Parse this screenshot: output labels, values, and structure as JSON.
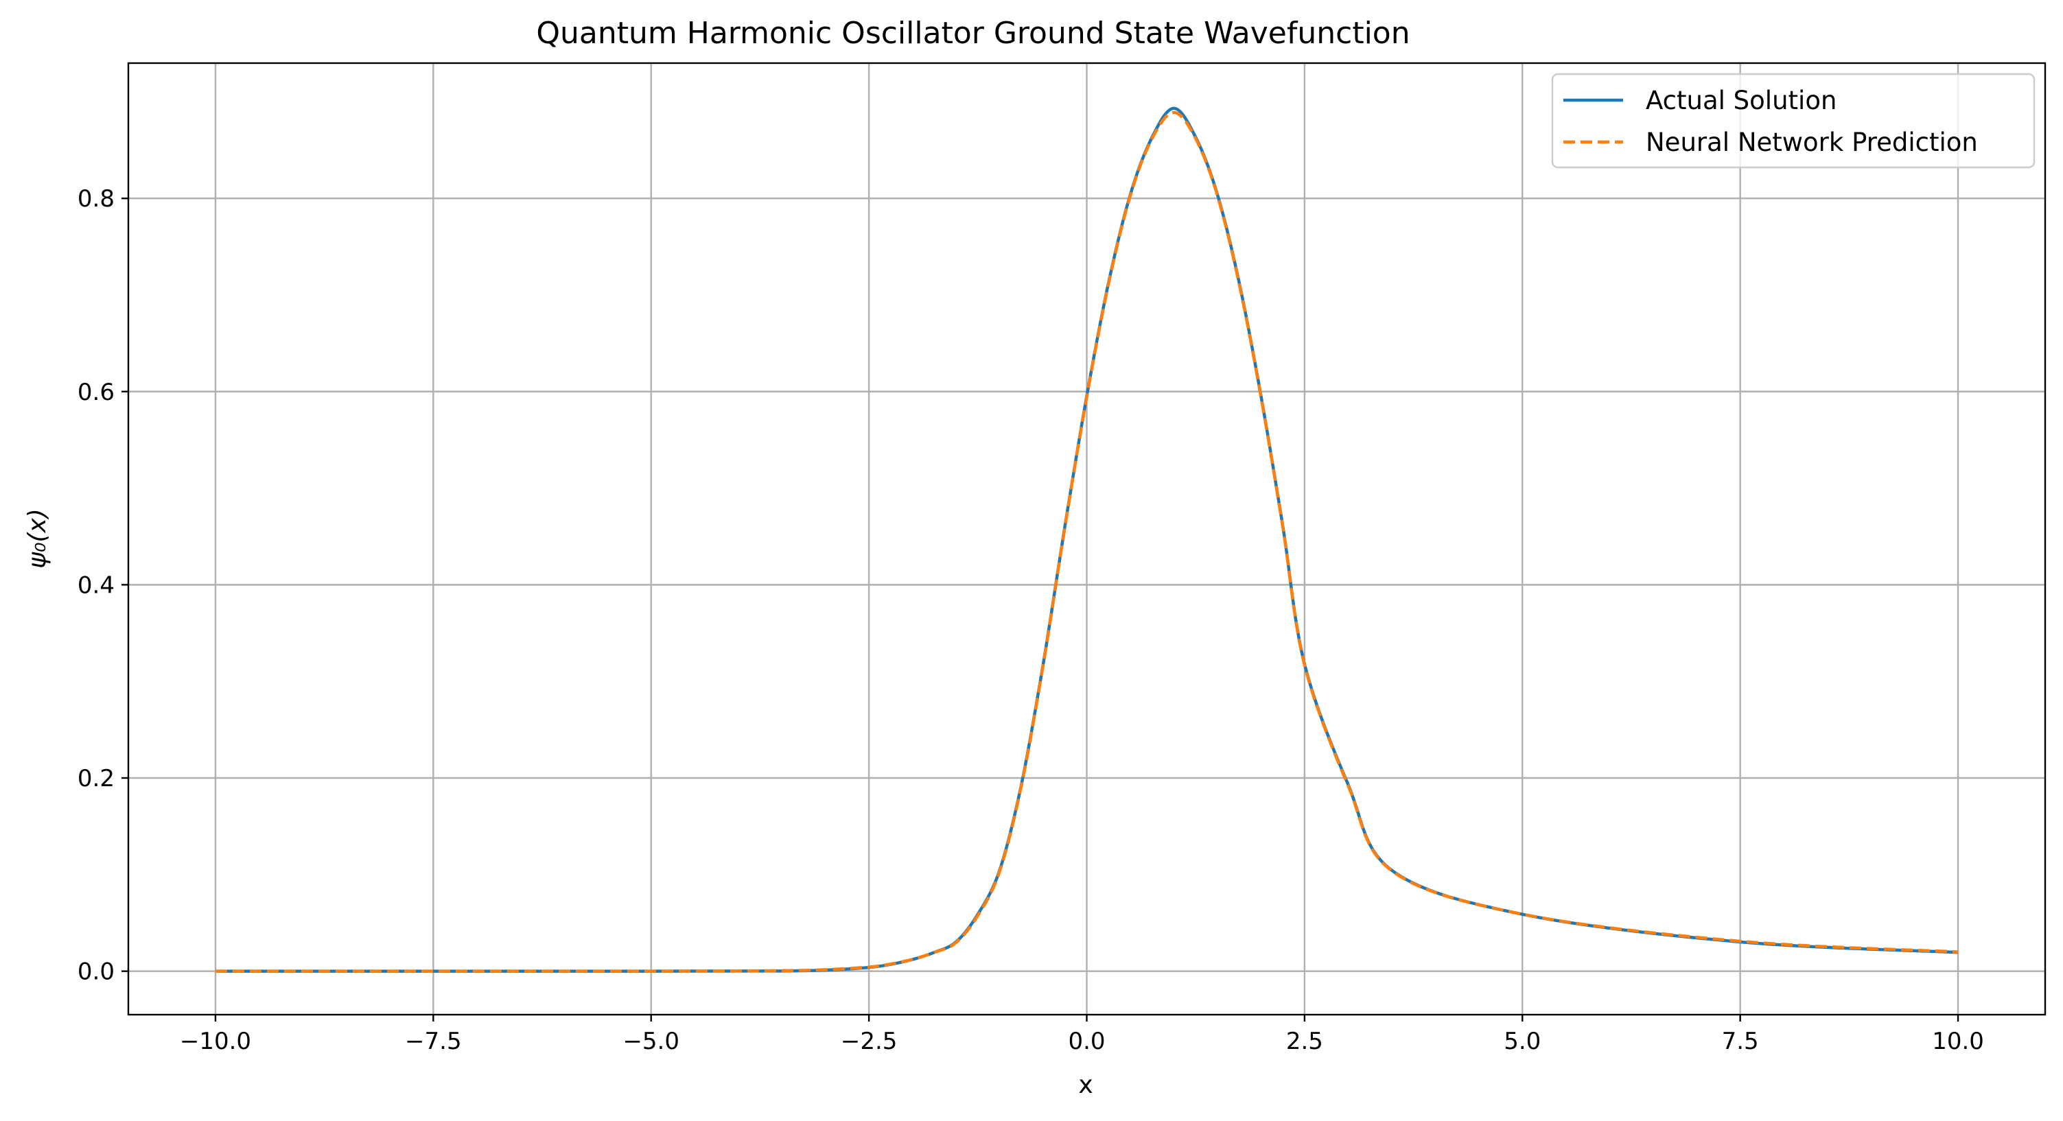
{
  "chart_data": {
    "type": "line",
    "title": "Quantum Harmonic Oscillator Ground State Wavefunction",
    "xlabel": "x",
    "ylabel": "ψ₀(x)",
    "xlim": [
      -11,
      11
    ],
    "ylim": [
      -0.045,
      0.94
    ],
    "x_ticks": [
      -10.0,
      -7.5,
      -5.0,
      -2.5,
      0.0,
      2.5,
      5.0,
      7.5,
      10.0
    ],
    "x_tick_labels": [
      "−10.0",
      "−7.5",
      "−5.0",
      "−2.5",
      "0.0",
      "2.5",
      "5.0",
      "7.5",
      "10.0"
    ],
    "y_ticks": [
      0.0,
      0.2,
      0.4,
      0.6,
      0.8
    ],
    "y_tick_labels": [
      "0.0",
      "0.2",
      "0.4",
      "0.6",
      "0.8"
    ],
    "grid": true,
    "legend_position": "top-right",
    "x": [
      -10.0,
      -7.5,
      -5.0,
      -3.5,
      -3.0,
      -2.5,
      -2.25,
      -2.0,
      -1.75,
      -1.5,
      -1.25,
      -1.0,
      -0.75,
      -0.5,
      -0.25,
      0.0,
      0.25,
      0.5,
      0.75,
      1.0,
      1.25,
      1.5,
      1.75,
      2.0,
      2.25,
      2.5,
      3.0,
      3.5,
      5.0,
      7.5,
      10.0
    ],
    "series": [
      {
        "name": "Actual Solution",
        "color": "#1f77b4",
        "style": "solid",
        "values": [
          0.0,
          0.0,
          0.0,
          0.0002,
          0.0011,
          0.0039,
          0.0071,
          0.0121,
          0.0195,
          0.0303,
          0.0589,
          0.1045,
          0.1932,
          0.3178,
          0.4609,
          0.5954,
          0.7126,
          0.8039,
          0.8633,
          0.8932,
          0.8633,
          0.8039,
          0.7126,
          0.5954,
          0.4609,
          0.3178,
          0.1932,
          0.1045,
          0.0589,
          0.0303,
          0.0195
        ]
      },
      {
        "name": "Neural Network Prediction",
        "color": "#ff7f0e",
        "style": "dashed",
        "values": [
          0.0,
          0.0,
          0.0,
          0.0005,
          0.0016,
          0.0043,
          0.0074,
          0.0123,
          0.0194,
          0.0296,
          0.0576,
          0.1033,
          0.1922,
          0.317,
          0.4601,
          0.5945,
          0.7115,
          0.8029,
          0.862,
          0.889,
          0.862,
          0.8029,
          0.7115,
          0.5945,
          0.4601,
          0.317,
          0.1922,
          0.104,
          0.059,
          0.031,
          0.02
        ]
      }
    ]
  }
}
